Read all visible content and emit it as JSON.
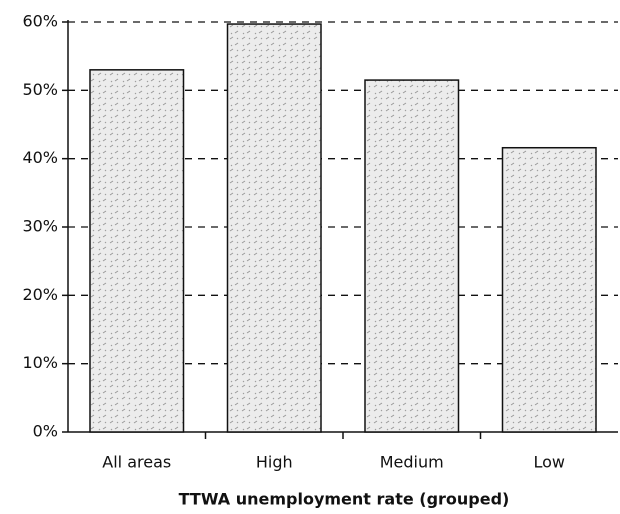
{
  "chart_data": {
    "type": "bar",
    "x_label": "TTWA unemployment rate (grouped)",
    "categories": [
      "All areas",
      "High",
      "Medium",
      "Low"
    ],
    "values": [
      53,
      59.7,
      51.5,
      41.6
    ],
    "color": "#e6e6e6",
    "ylim": [
      0,
      60
    ],
    "yticks": [
      {
        "value": 0,
        "label": "0%"
      },
      {
        "value": 10,
        "label": "10%"
      },
      {
        "value": 20,
        "label": "20%"
      },
      {
        "value": 30,
        "label": "30%"
      },
      {
        "value": 40,
        "label": "40%"
      },
      {
        "value": 50,
        "label": "50%"
      },
      {
        "value": 60,
        "label": "60%"
      }
    ],
    "grid": true
  }
}
